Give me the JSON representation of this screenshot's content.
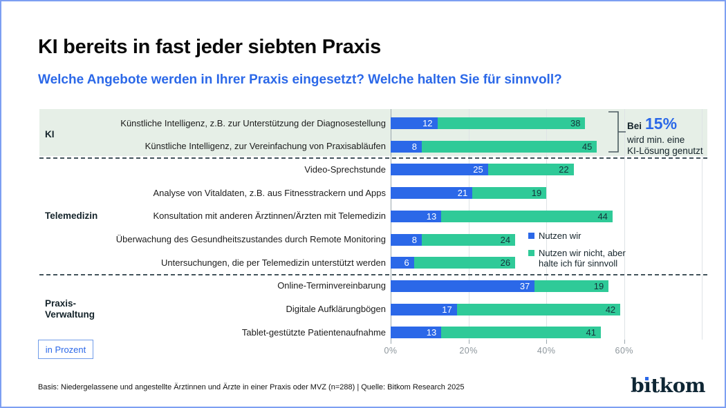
{
  "header": {
    "title": "KI bereits in fast jeder siebten Praxis",
    "subtitle": "Welche Angebote werden in Ihrer Praxis eingesetzt? Welche halten Sie für sinnvoll?"
  },
  "chart_data": {
    "type": "bar",
    "orientation": "horizontal",
    "stacked": true,
    "unit": "Prozent",
    "categories": [
      "Künstliche Intelligenz, z.B. zur Unterstützung der Diagnosestellung",
      "Künstliche Intelligenz, zur Vereinfachung von Praxisabläufen",
      "Video-Sprechstunde",
      "Analyse von Vitaldaten, z.B. aus Fitnesstrackern und Apps",
      "Konsultation mit anderen Ärztinnen/Ärzten mit Telemedizin",
      "Überwachung des Gesundheitszustandes durch Remote Monitoring",
      "Untersuchungen, die per Telemedizin unterstützt werden",
      "Online-Terminvereinbarung",
      "Digitale Aufklärungbögen",
      "Tablet-gestützte Patientenaufnahme"
    ],
    "series": [
      {
        "name": "Nutzen wir",
        "color": "#2b68e8",
        "values": [
          12,
          8,
          25,
          21,
          13,
          8,
          6,
          37,
          17,
          13
        ]
      },
      {
        "name": "Nutzen wir nicht, aber halte ich für sinnvoll",
        "color": "#2fca98",
        "values": [
          38,
          45,
          22,
          19,
          44,
          24,
          26,
          19,
          42,
          41
        ]
      }
    ],
    "groups": [
      {
        "lines": [
          "KI"
        ],
        "first_row": 0,
        "last_row": 1,
        "highlighted": true
      },
      {
        "lines": [
          "Telemedizin"
        ],
        "first_row": 2,
        "last_row": 6,
        "highlighted": false
      },
      {
        "lines": [
          "Praxis-",
          "Verwaltung"
        ],
        "first_row": 7,
        "last_row": 9,
        "highlighted": false
      }
    ],
    "x_axis": {
      "tick_values": [
        0,
        20,
        40,
        60
      ],
      "tick_labels": [
        "0%",
        "20%",
        "40%",
        "60%"
      ],
      "gridline_values": [
        20,
        40,
        60,
        80
      ],
      "xlim": [
        0,
        80
      ]
    },
    "legend_position": "inside-right"
  },
  "legend": {
    "item1": "Nutzen wir",
    "item2_line1": "Nutzen wir nicht, aber",
    "item2_line2": "halte ich für sinnvoll"
  },
  "annotation": {
    "prefix": "Bei",
    "value": "15%",
    "line2": "wird min. eine",
    "line3": "KI-Lösung genutzt"
  },
  "axis_note": "in Prozent",
  "footer": {
    "source": "Basis: Niedergelassene und angestellte Ärztinnen und Ärzte in einer Praxis oder MVZ (n=288) | Quelle: Bitkom Research 2025",
    "logo": "bitkom"
  },
  "colors": {
    "accent_blue": "#2b68e8",
    "accent_green": "#2fca98",
    "band_green": "#e6efe7",
    "frame_blue": "#7d9ff2"
  }
}
